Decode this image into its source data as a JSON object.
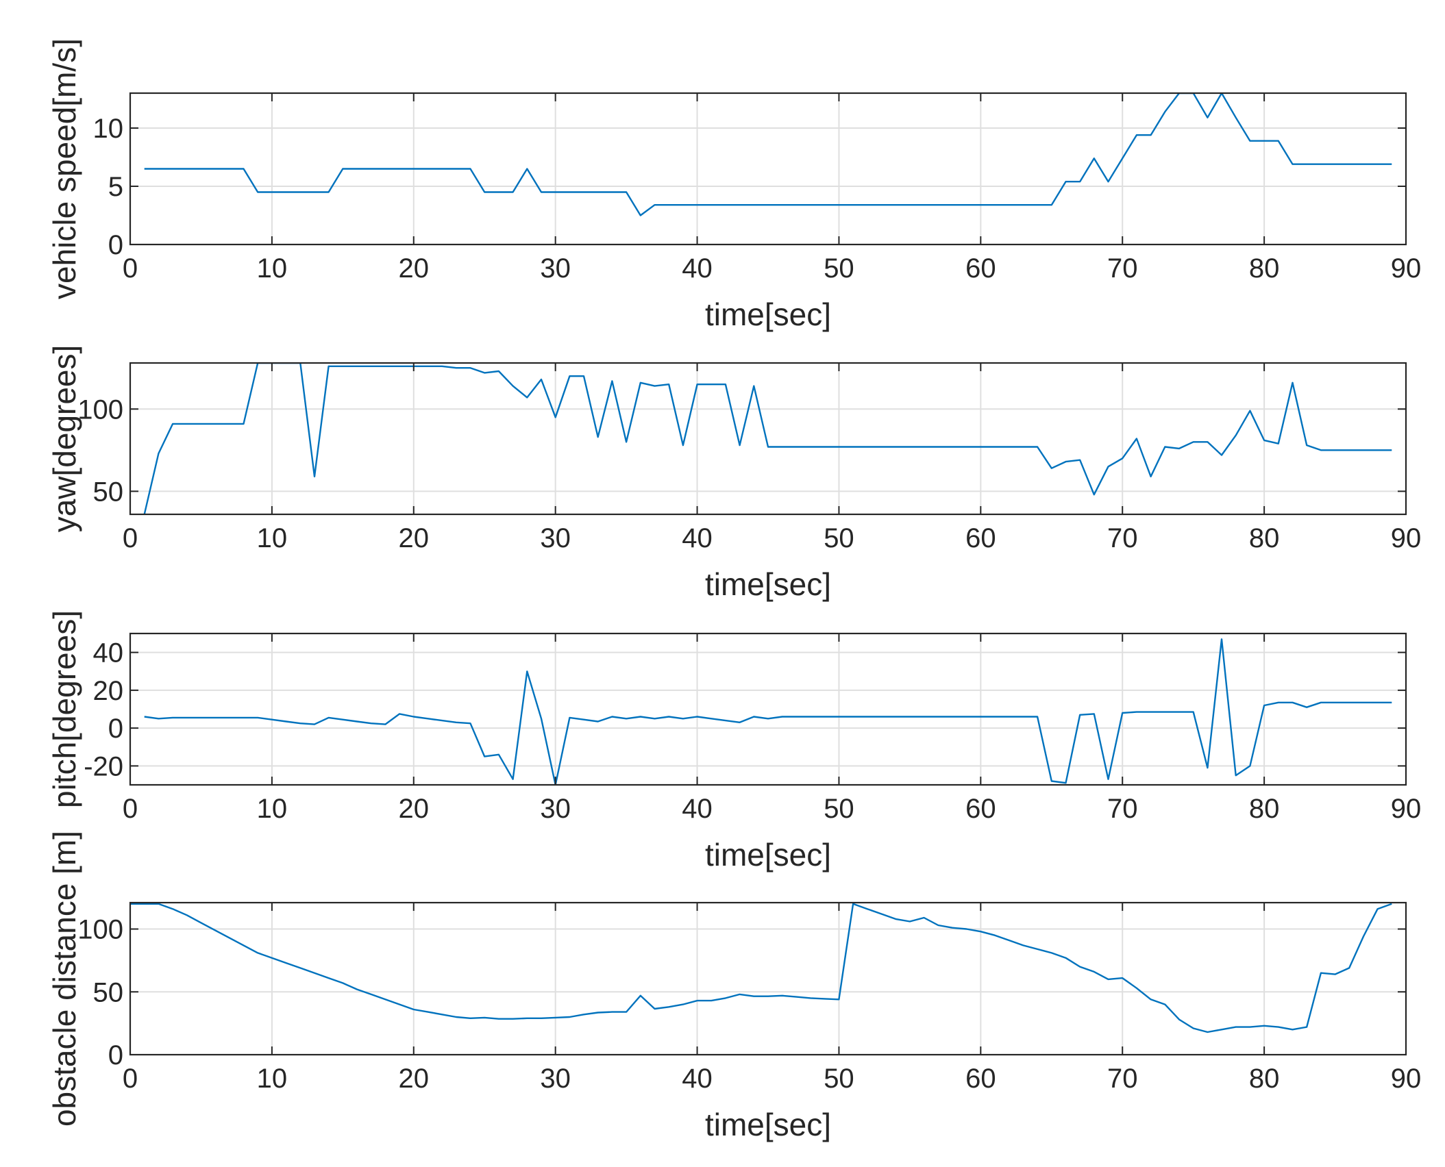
{
  "chart_data": [
    {
      "type": "line",
      "xlabel": "time[sec]",
      "ylabel": "vehicle speed[m/s]",
      "xlim": [
        0,
        90
      ],
      "ylim": [
        0,
        13
      ],
      "xticks": [
        0,
        10,
        20,
        30,
        40,
        50,
        60,
        70,
        80,
        90
      ],
      "yticks": [
        0,
        5,
        10
      ],
      "grid": true,
      "color": "#0072BD",
      "x": [
        1,
        2,
        3,
        4,
        5,
        6,
        7,
        8,
        9,
        10,
        11,
        12,
        13,
        14,
        15,
        16,
        17,
        18,
        19,
        20,
        21,
        22,
        23,
        24,
        25,
        26,
        27,
        28,
        29,
        30,
        31,
        32,
        33,
        34,
        35,
        36,
        37,
        38,
        39,
        40,
        41,
        42,
        43,
        44,
        45,
        46,
        47,
        48,
        49,
        50,
        51,
        52,
        53,
        54,
        55,
        56,
        57,
        58,
        59,
        60,
        61,
        62,
        63,
        64,
        65,
        66,
        67,
        68,
        69,
        70,
        71,
        72,
        73,
        74,
        75,
        76,
        77,
        78,
        79,
        80,
        81,
        82,
        83,
        84,
        85,
        86,
        87,
        88,
        89
      ],
      "y": [
        6.5,
        6.5,
        6.5,
        6.5,
        6.5,
        6.5,
        6.5,
        6.5,
        4.5,
        4.5,
        4.5,
        4.5,
        4.5,
        4.5,
        6.5,
        6.5,
        6.5,
        6.5,
        6.5,
        6.5,
        6.5,
        6.5,
        6.5,
        6.5,
        4.5,
        4.5,
        4.5,
        6.5,
        4.5,
        4.5,
        4.5,
        4.5,
        4.5,
        4.5,
        4.5,
        2.5,
        3.4,
        3.4,
        3.4,
        3.4,
        3.4,
        3.4,
        3.4,
        3.4,
        3.4,
        3.4,
        3.4,
        3.4,
        3.4,
        3.4,
        3.4,
        3.4,
        3.4,
        3.4,
        3.4,
        3.4,
        3.4,
        3.4,
        3.4,
        3.4,
        3.4,
        3.4,
        3.4,
        3.4,
        3.4,
        5.4,
        5.4,
        7.4,
        5.4,
        7.4,
        9.4,
        9.4,
        11.4,
        13,
        13,
        10.9,
        13,
        10.9,
        8.9,
        8.9,
        8.9,
        6.9,
        6.9,
        6.9,
        6.9,
        6.9,
        6.9,
        6.9,
        6.9
      ]
    },
    {
      "type": "line",
      "xlabel": "time[sec]",
      "ylabel": "yaw[degrees]",
      "xlim": [
        0,
        90
      ],
      "ylim": [
        36,
        128
      ],
      "xticks": [
        0,
        10,
        20,
        30,
        40,
        50,
        60,
        70,
        80,
        90
      ],
      "yticks": [
        50,
        100
      ],
      "grid": true,
      "color": "#0072BD",
      "x": [
        1,
        2,
        3,
        4,
        5,
        6,
        7,
        8,
        9,
        10,
        11,
        12,
        13,
        14,
        15,
        16,
        17,
        18,
        19,
        20,
        21,
        22,
        23,
        24,
        25,
        26,
        27,
        28,
        29,
        30,
        31,
        32,
        33,
        34,
        35,
        36,
        37,
        38,
        39,
        40,
        41,
        42,
        43,
        44,
        45,
        46,
        47,
        48,
        49,
        50,
        51,
        52,
        53,
        54,
        55,
        56,
        57,
        58,
        59,
        60,
        61,
        62,
        63,
        64,
        65,
        66,
        67,
        68,
        69,
        70,
        71,
        72,
        73,
        74,
        75,
        76,
        77,
        78,
        79,
        80,
        81,
        82,
        83,
        84,
        85,
        86,
        87,
        88,
        89
      ],
      "y": [
        36,
        73,
        91,
        91,
        91,
        91,
        91,
        91,
        128,
        128,
        128,
        128,
        59,
        126,
        126,
        126,
        126,
        126,
        126,
        126,
        126,
        126,
        125,
        125,
        122,
        123,
        114,
        107,
        118,
        95,
        120,
        120,
        83,
        117,
        80,
        116,
        114,
        115,
        78,
        115,
        115,
        115,
        78,
        114,
        77,
        77,
        77,
        77,
        77,
        77,
        77,
        77,
        77,
        77,
        77,
        77,
        77,
        77,
        77,
        77,
        77,
        77,
        77,
        77,
        64,
        68,
        69,
        48,
        65,
        70,
        82,
        59,
        77,
        76,
        80,
        80,
        72,
        84,
        99,
        81,
        79,
        116,
        78,
        75,
        75,
        75,
        75,
        75,
        75
      ]
    },
    {
      "type": "line",
      "xlabel": "time[sec]",
      "ylabel": "pitch[degrees]",
      "xlim": [
        0,
        90
      ],
      "ylim": [
        -30,
        50
      ],
      "xticks": [
        0,
        10,
        20,
        30,
        40,
        50,
        60,
        70,
        80,
        90
      ],
      "yticks": [
        -20,
        0,
        20,
        40
      ],
      "ytick_labels": [
        "-20",
        "0",
        "20",
        "40"
      ],
      "grid": true,
      "color": "#0072BD",
      "x": [
        1,
        2,
        3,
        4,
        5,
        6,
        7,
        8,
        9,
        10,
        11,
        12,
        13,
        14,
        15,
        16,
        17,
        18,
        19,
        20,
        21,
        22,
        23,
        24,
        25,
        26,
        27,
        28,
        29,
        30,
        31,
        32,
        33,
        34,
        35,
        36,
        37,
        38,
        39,
        40,
        41,
        42,
        43,
        44,
        45,
        46,
        47,
        48,
        49,
        50,
        51,
        52,
        53,
        54,
        55,
        56,
        57,
        58,
        59,
        60,
        61,
        62,
        63,
        64,
        65,
        66,
        67,
        68,
        69,
        70,
        71,
        72,
        73,
        74,
        75,
        76,
        77,
        78,
        79,
        80,
        81,
        82,
        83,
        84,
        85,
        86,
        87,
        88,
        89
      ],
      "y": [
        6,
        5,
        5.5,
        5.5,
        5.5,
        5.5,
        5.5,
        5.5,
        5.5,
        4.5,
        3.5,
        2.5,
        2,
        5.5,
        4.5,
        3.5,
        2.5,
        2,
        7.5,
        6,
        5,
        4,
        3,
        2.5,
        -15,
        -14,
        -27,
        30,
        5,
        -30,
        5.5,
        4.5,
        3.5,
        6,
        5,
        6,
        5,
        6,
        5,
        6,
        5,
        4,
        3,
        6,
        5,
        6,
        6,
        6,
        6,
        6,
        6,
        6,
        6,
        6,
        6,
        6,
        6,
        6,
        6,
        6,
        6,
        6,
        6,
        6,
        -28,
        -29,
        7,
        7.5,
        -27,
        8,
        8.5,
        8.5,
        8.5,
        8.5,
        8.5,
        -21,
        47,
        -25,
        -20,
        12,
        13.5,
        13.5,
        11,
        13.5,
        13.5,
        13.5,
        13.5,
        13.5,
        13.5
      ]
    },
    {
      "type": "line",
      "xlabel": "time[sec]",
      "ylabel": "obstacle distance [m]",
      "xlim": [
        0,
        90
      ],
      "ylim": [
        0,
        121
      ],
      "xticks": [
        0,
        10,
        20,
        30,
        40,
        50,
        60,
        70,
        80,
        90
      ],
      "yticks": [
        0,
        50,
        100
      ],
      "grid": true,
      "color": "#0072BD",
      "x": [
        0,
        1,
        2,
        3,
        4,
        5,
        6,
        7,
        8,
        9,
        10,
        11,
        12,
        13,
        14,
        15,
        16,
        17,
        18,
        19,
        20,
        21,
        22,
        23,
        24,
        25,
        26,
        27,
        28,
        29,
        30,
        31,
        32,
        33,
        34,
        35,
        36,
        37,
        38,
        39,
        40,
        41,
        42,
        43,
        44,
        45,
        46,
        47,
        48,
        49,
        50,
        51,
        52,
        53,
        54,
        55,
        56,
        57,
        58,
        59,
        60,
        61,
        62,
        63,
        64,
        65,
        66,
        67,
        68,
        69,
        70,
        71,
        72,
        73,
        74,
        75,
        76,
        77,
        78,
        79,
        80,
        81,
        82,
        83,
        84,
        85,
        86,
        87,
        88,
        89
      ],
      "y": [
        120,
        120,
        120,
        116,
        111,
        105,
        99,
        93,
        87,
        81,
        77,
        73,
        69,
        65,
        61,
        57,
        52,
        48,
        44,
        40,
        36,
        34,
        32,
        30,
        29,
        29.5,
        28.5,
        28.5,
        29,
        29,
        29.5,
        30,
        32,
        33.5,
        34,
        34,
        47,
        36.5,
        38,
        40,
        43,
        43,
        45,
        48,
        46.5,
        46.5,
        47,
        46,
        45,
        44.5,
        44,
        120,
        116,
        112,
        108,
        106,
        109,
        103,
        101,
        100,
        98,
        95,
        91,
        87,
        84,
        81,
        77,
        70,
        66,
        60,
        61,
        53,
        44,
        40,
        28,
        21,
        18,
        20,
        22,
        22,
        23,
        22,
        20,
        22,
        65,
        64,
        69,
        94,
        116,
        120
      ]
    }
  ]
}
